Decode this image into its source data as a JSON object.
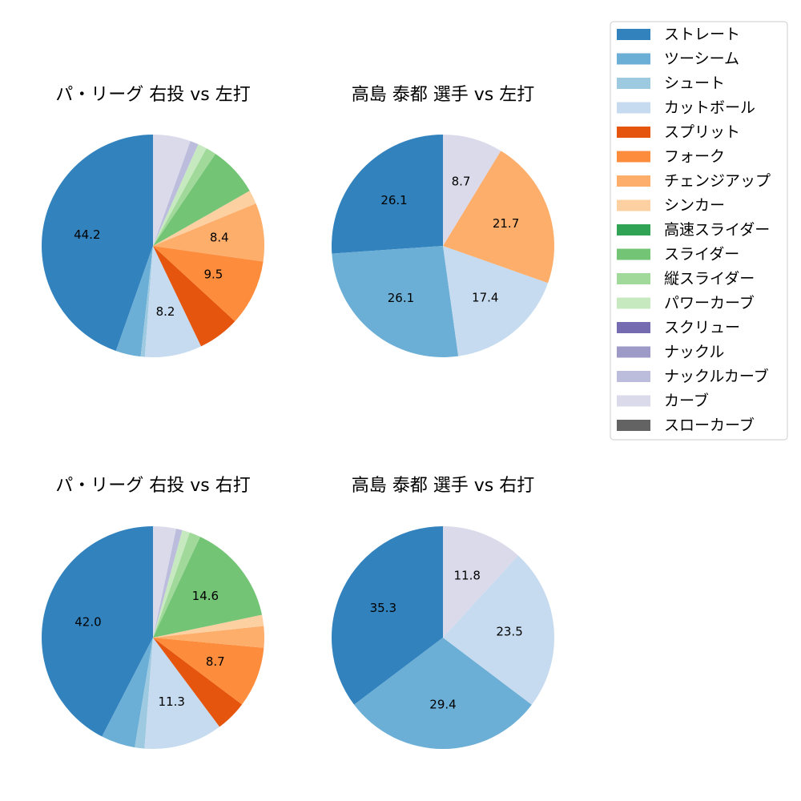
{
  "legend": {
    "items": [
      {
        "label": "ストレート",
        "color": "#3182bd"
      },
      {
        "label": "ツーシーム",
        "color": "#6baed6"
      },
      {
        "label": "シュート",
        "color": "#9ecae1"
      },
      {
        "label": "カットボール",
        "color": "#c6dbef"
      },
      {
        "label": "スプリット",
        "color": "#e6550d"
      },
      {
        "label": "フォーク",
        "color": "#fd8d3c"
      },
      {
        "label": "チェンジアップ",
        "color": "#fdae6b"
      },
      {
        "label": "シンカー",
        "color": "#fdd0a2"
      },
      {
        "label": "高速スライダー",
        "color": "#31a354"
      },
      {
        "label": "スライダー",
        "color": "#74c476"
      },
      {
        "label": "縦スライダー",
        "color": "#a1d99b"
      },
      {
        "label": "パワーカーブ",
        "color": "#c7e9c0"
      },
      {
        "label": "スクリュー",
        "color": "#756bb1"
      },
      {
        "label": "ナックル",
        "color": "#9e9ac8"
      },
      {
        "label": "ナックルカーブ",
        "color": "#bcbddc"
      },
      {
        "label": "カーブ",
        "color": "#dadaeb"
      },
      {
        "label": "スローカーブ",
        "color": "#636363"
      }
    ]
  },
  "chart_data": [
    {
      "type": "pie",
      "title": "パ・リーグ 右投 vs 左打",
      "slices": [
        {
          "category": "ストレート",
          "value": 44.2,
          "label": "44.2"
        },
        {
          "category": "ツーシーム",
          "value": 3.6,
          "label": ""
        },
        {
          "category": "シュート",
          "value": 0.6,
          "label": ""
        },
        {
          "category": "カットボール",
          "value": 8.2,
          "label": "8.2"
        },
        {
          "category": "スプリット",
          "value": 6.0,
          "label": ""
        },
        {
          "category": "フォーク",
          "value": 9.5,
          "label": "9.5"
        },
        {
          "category": "チェンジアップ",
          "value": 8.4,
          "label": "8.4"
        },
        {
          "category": "シンカー",
          "value": 2.0,
          "label": ""
        },
        {
          "category": "スライダー",
          "value": 7.2,
          "label": ""
        },
        {
          "category": "縦スライダー",
          "value": 1.5,
          "label": ""
        },
        {
          "category": "パワーカーブ",
          "value": 1.3,
          "label": ""
        },
        {
          "category": "ナックルカーブ",
          "value": 1.2,
          "label": ""
        },
        {
          "category": "カーブ",
          "value": 5.4,
          "label": ""
        }
      ]
    },
    {
      "type": "pie",
      "title": "高島 泰都 選手 vs 左打",
      "slices": [
        {
          "category": "ストレート",
          "value": 26.1,
          "label": "26.1"
        },
        {
          "category": "ツーシーム",
          "value": 26.1,
          "label": "26.1"
        },
        {
          "category": "カットボール",
          "value": 17.4,
          "label": "17.4"
        },
        {
          "category": "チェンジアップ",
          "value": 21.7,
          "label": "21.7"
        },
        {
          "category": "カーブ",
          "value": 8.7,
          "label": "8.7"
        }
      ]
    },
    {
      "type": "pie",
      "title": "パ・リーグ 右投 vs 右打",
      "slices": [
        {
          "category": "ストレート",
          "value": 42.0,
          "label": "42.0"
        },
        {
          "category": "ツーシーム",
          "value": 4.9,
          "label": ""
        },
        {
          "category": "シュート",
          "value": 1.4,
          "label": ""
        },
        {
          "category": "カットボール",
          "value": 11.3,
          "label": "11.3"
        },
        {
          "category": "スプリット",
          "value": 4.5,
          "label": ""
        },
        {
          "category": "フォーク",
          "value": 8.7,
          "label": "8.7"
        },
        {
          "category": "チェンジアップ",
          "value": 3.1,
          "label": ""
        },
        {
          "category": "シンカー",
          "value": 1.6,
          "label": ""
        },
        {
          "category": "スライダー",
          "value": 14.6,
          "label": "14.6"
        },
        {
          "category": "縦スライダー",
          "value": 1.6,
          "label": ""
        },
        {
          "category": "パワーカーブ",
          "value": 1.1,
          "label": ""
        },
        {
          "category": "ナックルカーブ",
          "value": 0.9,
          "label": ""
        },
        {
          "category": "カーブ",
          "value": 3.3,
          "label": ""
        }
      ]
    },
    {
      "type": "pie",
      "title": "高島 泰都 選手 vs 右打",
      "slices": [
        {
          "category": "ストレート",
          "value": 35.3,
          "label": "35.3"
        },
        {
          "category": "ツーシーム",
          "value": 29.4,
          "label": "29.4"
        },
        {
          "category": "カットボール",
          "value": 23.5,
          "label": "23.5"
        },
        {
          "category": "カーブ",
          "value": 11.8,
          "label": "11.8"
        }
      ]
    }
  ]
}
